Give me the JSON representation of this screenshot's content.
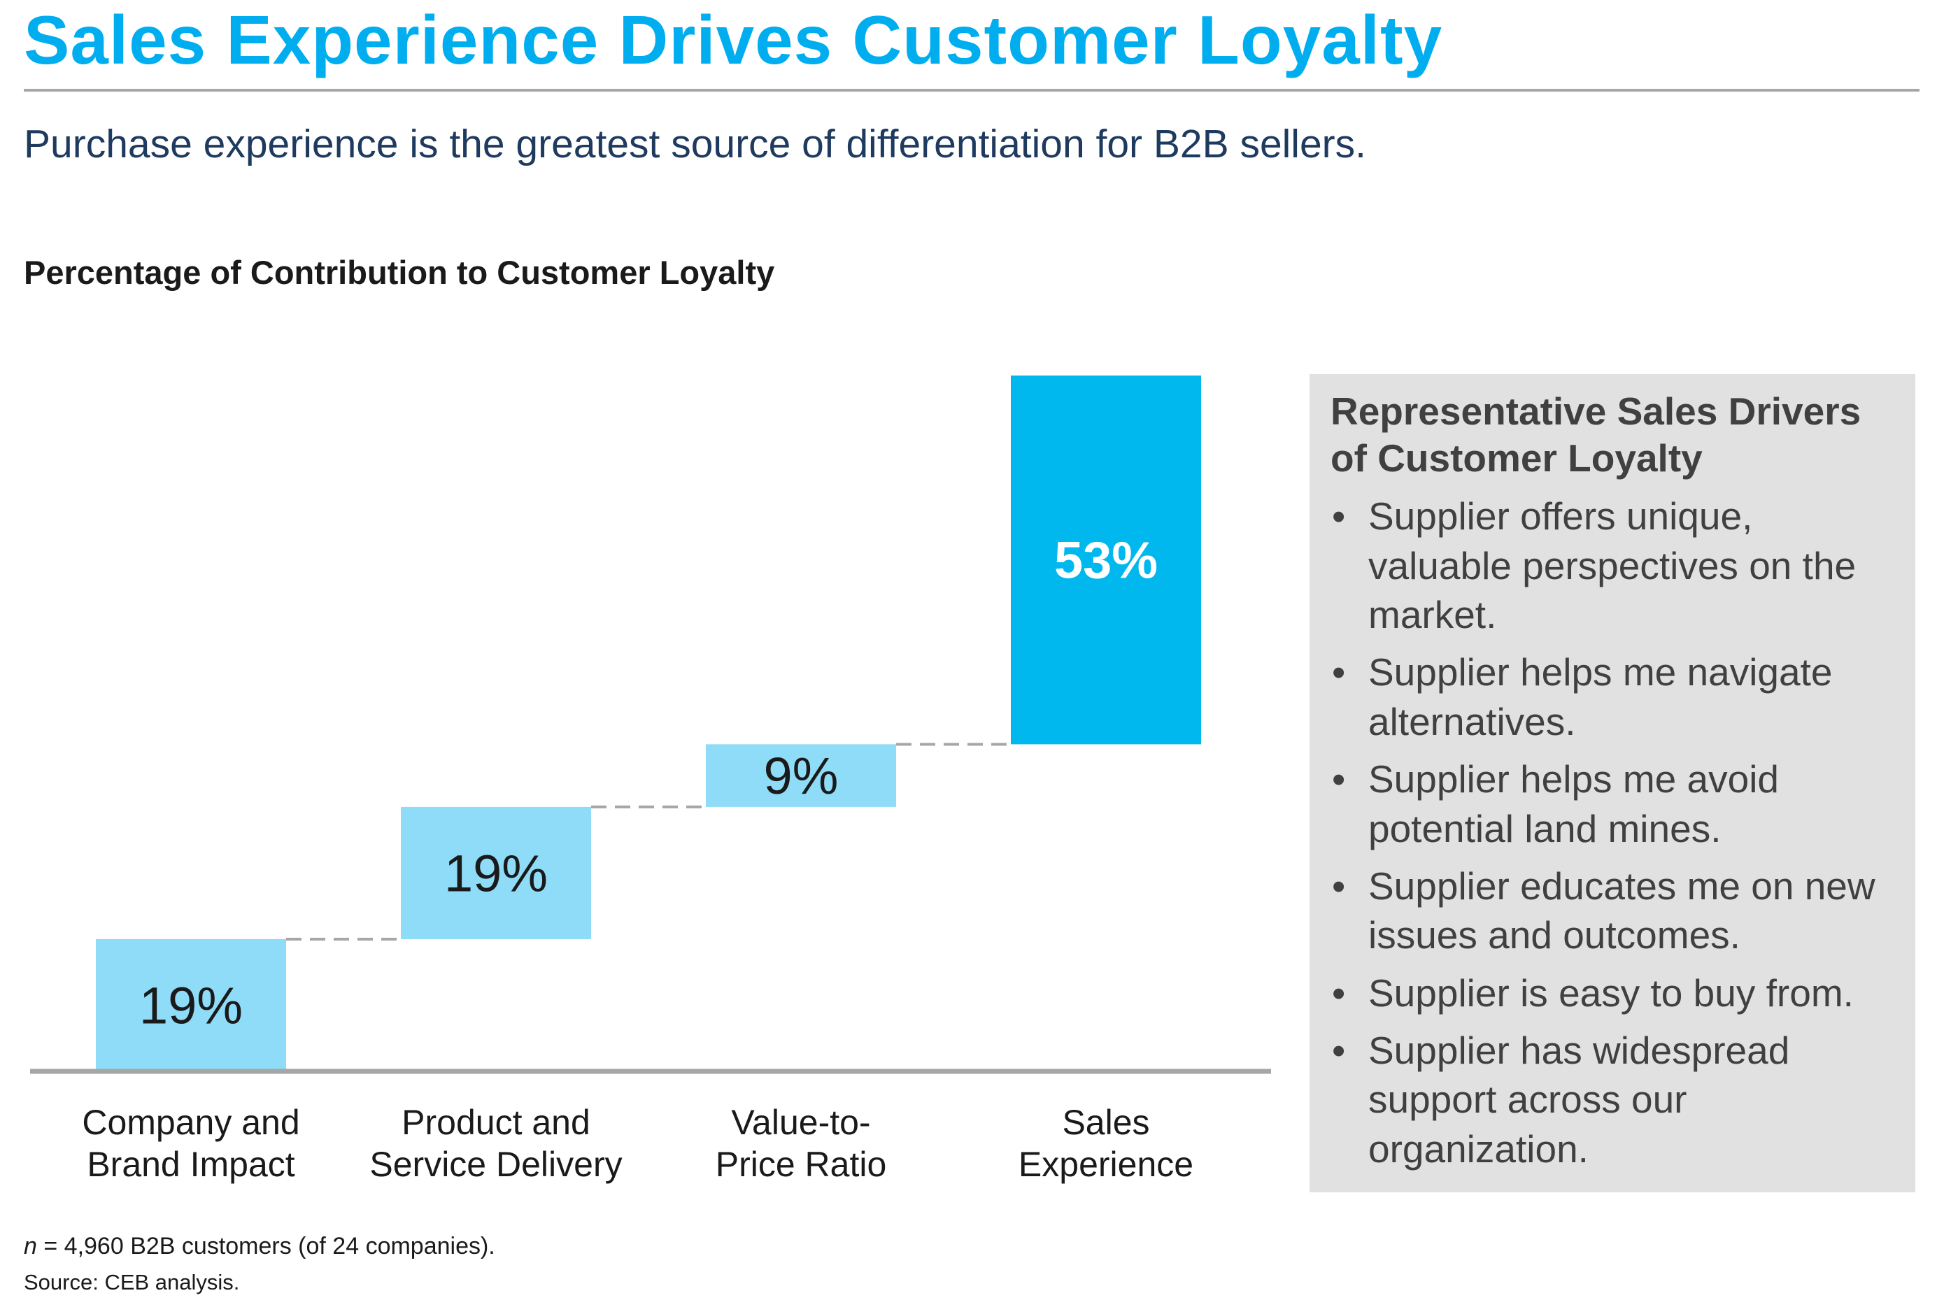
{
  "header": {
    "title": "Sales Experience Drives Customer Loyalty",
    "subtitle": "Purchase experience is the greatest source of differentiation for B2B sellers."
  },
  "colors": {
    "title": "#00adef",
    "subtitle": "#1f3a5f",
    "bar_light": "#8fdcf8",
    "bar_dark": "#00b7ee",
    "axis": "#a6a6a6",
    "connector": "#a6a6a6",
    "panel_bg": "#e1e1e1",
    "panel_text": "#404040"
  },
  "chart_data": {
    "type": "waterfall",
    "title": "Percentage of Contribution to Customer Loyalty",
    "categories": [
      [
        "Company and",
        "Brand Impact"
      ],
      [
        "Product and",
        "Service Delivery"
      ],
      [
        "Value-to-",
        "Price Ratio"
      ],
      [
        "Sales",
        "Experience"
      ]
    ],
    "values": [
      19,
      19,
      9,
      53
    ],
    "labels": [
      "19%",
      "19%",
      "9%",
      "53%"
    ],
    "highlight_index": 3,
    "unit": "%",
    "ylim": [
      0,
      100
    ],
    "xlabel": "",
    "ylabel": "",
    "grid": false
  },
  "side_panel": {
    "title": "Representative Sales Drivers of Customer Loyalty",
    "items": [
      "Supplier offers unique, valuable perspectives on the market.",
      "Supplier helps me navigate alternatives.",
      "Supplier helps me avoid potential land mines.",
      "Supplier educates me on new issues and outcomes.",
      "Supplier is easy to buy from.",
      "Supplier has widespread support across our organization."
    ]
  },
  "footer": {
    "note_var": "n",
    "note_rest": " = 4,960 B2B customers (of 24 companies).",
    "source": "Source: CEB analysis."
  }
}
